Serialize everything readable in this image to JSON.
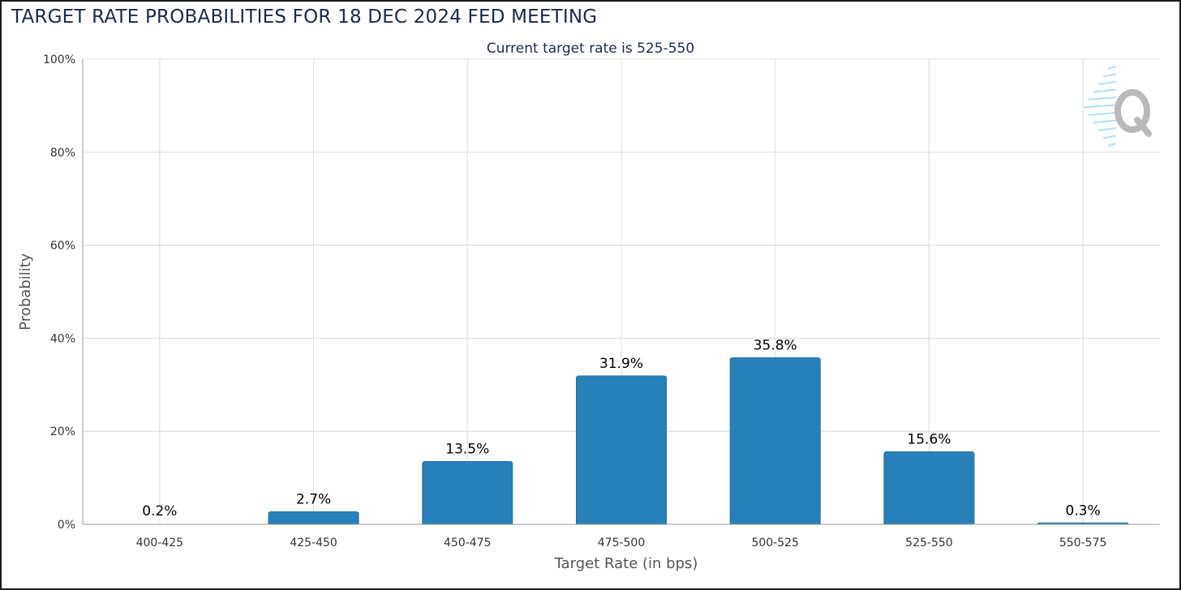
{
  "chart_data": {
    "type": "bar",
    "title": "TARGET RATE PROBABILITIES FOR 18 DEC 2024 FED MEETING",
    "subtitle": "Current target rate is 525-550",
    "xlabel": "Target Rate (in bps)",
    "ylabel": "Probability",
    "categories": [
      "400-425",
      "425-450",
      "450-475",
      "475-500",
      "500-525",
      "525-550",
      "550-575"
    ],
    "values": [
      0.2,
      2.7,
      13.5,
      31.9,
      35.8,
      15.6,
      0.3
    ],
    "data_labels": [
      "0.2%",
      "2.7%",
      "13.5%",
      "31.9%",
      "35.8%",
      "15.6%",
      "0.3%"
    ],
    "ylim": [
      0,
      100
    ],
    "yticks": [
      0,
      20,
      40,
      60,
      80,
      100
    ],
    "ytick_labels": [
      "0%",
      "20%",
      "40%",
      "60%",
      "80%",
      "100%"
    ],
    "grid": true,
    "colors": {
      "bar": "#2980b9",
      "bar_edge": "#1f6fa3",
      "grid": "#dcdcdc",
      "watermark": "#b9b9b9",
      "watermark_lines": "#9fd8f2"
    },
    "watermark_icon": "q-logo-icon"
  }
}
